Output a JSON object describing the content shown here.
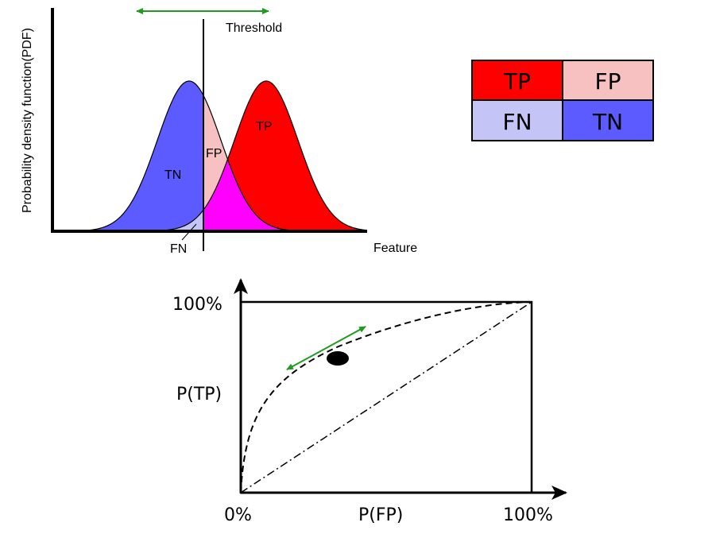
{
  "pdf_plot": {
    "y_axis_label": "Probability density function(PDF)",
    "x_axis_label": "Feature",
    "threshold_label": "Threshold",
    "regions": {
      "tn": "TN",
      "fp": "FP",
      "tp": "TP",
      "fn": "FN"
    },
    "colors": {
      "negative_curve": "#5b5bff",
      "positive_curve": "#ff0000",
      "fp_region": "#f7c1c1",
      "fn_region": "#c4c4f7",
      "overlap_region": "#ff00ff",
      "threshold_arrow": "#1c9e1c"
    }
  },
  "confusion_matrix": {
    "cells": [
      {
        "label": "TP",
        "color": "#ff0000"
      },
      {
        "label": "FP",
        "color": "#f7c1c1"
      },
      {
        "label": "FN",
        "color": "#c4c4f7"
      },
      {
        "label": "TN",
        "color": "#5b5bff"
      }
    ]
  },
  "roc_plot": {
    "y_axis_label": "P(TP)",
    "x_axis_label": "P(FP)",
    "y_top_tick": "100%",
    "x_min_tick": "0%",
    "x_max_tick": "100%",
    "operating_point_arrow_color": "#1c9e1c"
  }
}
